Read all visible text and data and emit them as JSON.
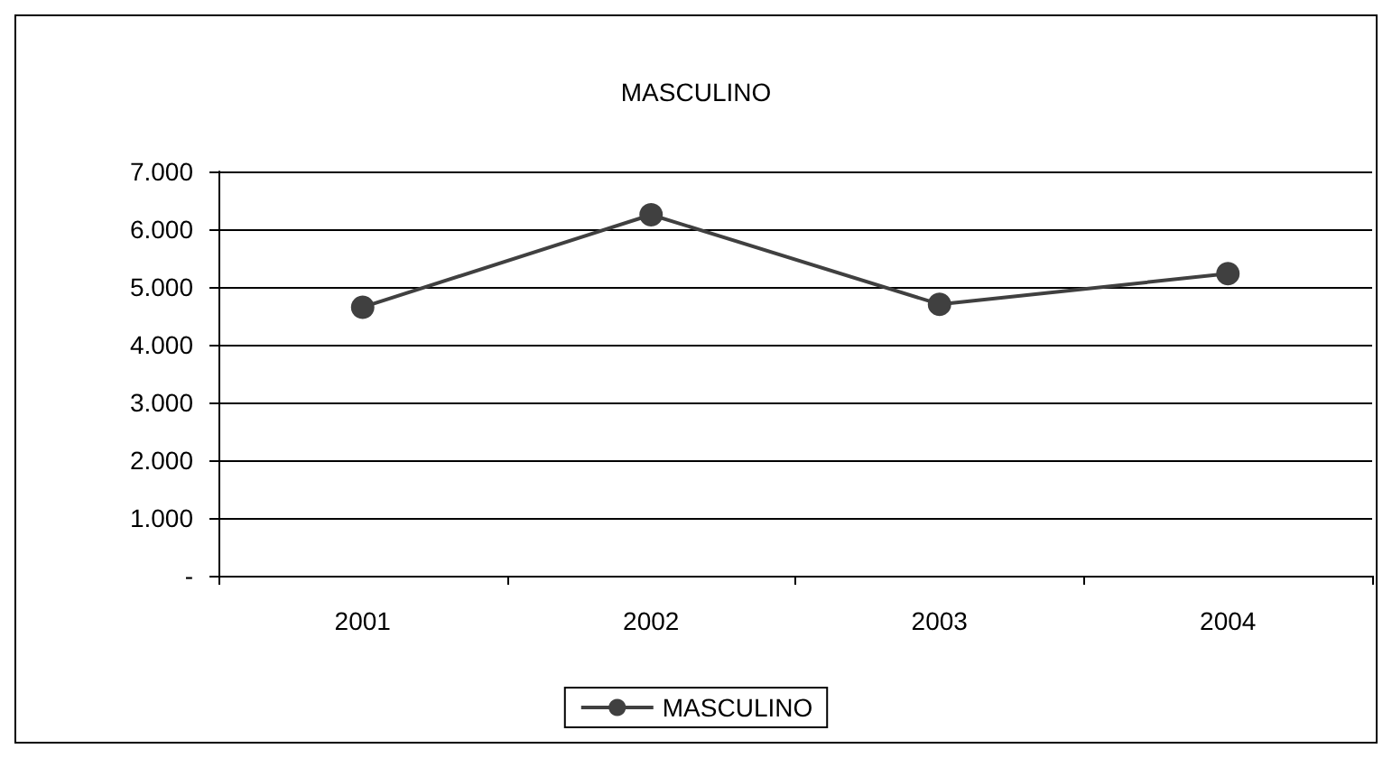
{
  "chart_data": {
    "type": "line",
    "title": "MASCULINO",
    "categories": [
      "2001",
      "2002",
      "2003",
      "2004"
    ],
    "series": [
      {
        "name": "MASCULINO",
        "color": "#404040",
        "values": [
          4650,
          6250,
          4700,
          5230
        ]
      }
    ],
    "ylim": [
      0,
      7000
    ],
    "yticks": [
      {
        "value": 0,
        "label": "-"
      },
      {
        "value": 1000,
        "label": "1.000"
      },
      {
        "value": 2000,
        "label": "2.000"
      },
      {
        "value": 3000,
        "label": "3.000"
      },
      {
        "value": 4000,
        "label": "4.000"
      },
      {
        "value": 5000,
        "label": "5.000"
      },
      {
        "value": 6000,
        "label": "6.000"
      },
      {
        "value": 7000,
        "label": "7.000"
      }
    ],
    "grid": "y",
    "legend": "bottom",
    "marker": "circle",
    "line_style": "solid"
  }
}
